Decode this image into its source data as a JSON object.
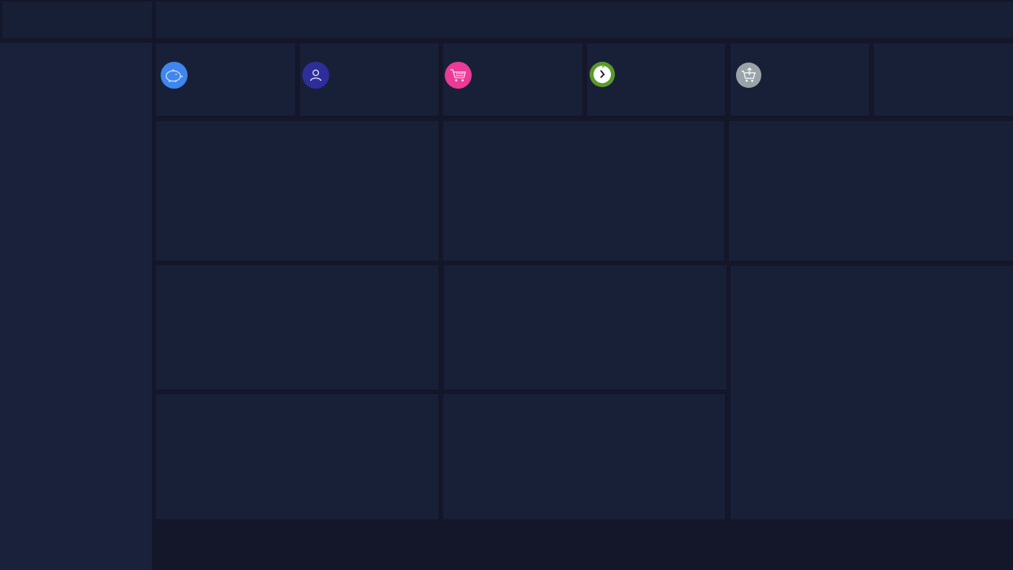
{
  "app": {
    "logo": "",
    "topbar_title": ""
  },
  "icons": {
    "kpi1": "piggy-bank-icon",
    "kpi2": "user-icon",
    "kpi3": "shopping-cart-icon",
    "kpi4": "clock-refresh-icon",
    "kpi5": "cart-upload-icon"
  },
  "colors": {
    "background": "#141629",
    "panel": "#182038",
    "kpi1": "#3f86ee",
    "kpi2": "#2e2e9a",
    "kpi3": "#ec3a96",
    "kpi4": "#5a9a2a",
    "kpi5": "#9aa3a8"
  }
}
